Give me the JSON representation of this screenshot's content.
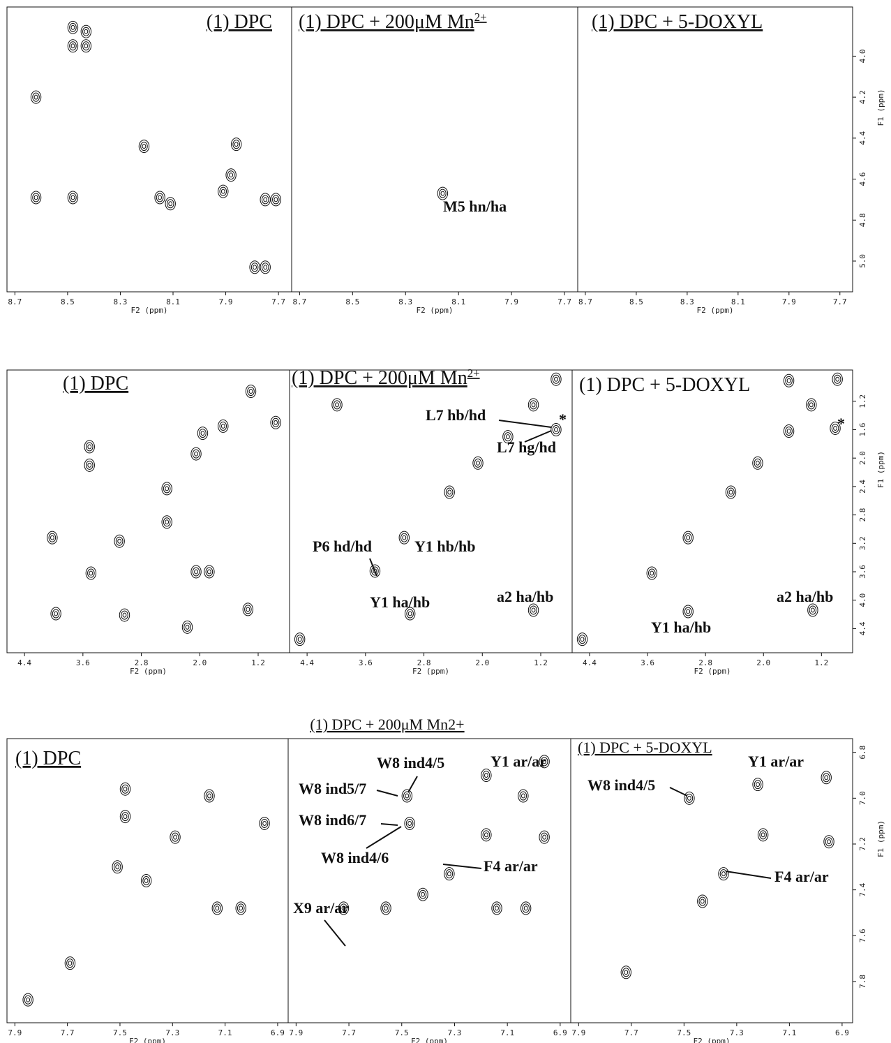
{
  "chart_data": [
    {
      "type": "contour",
      "title": "(1) DPC",
      "xlabel": "F2 (ppm)",
      "xlim": [
        8.73,
        7.65
      ],
      "ylim": [
        3.76,
        5.15
      ],
      "xticks": [
        8.7,
        8.5,
        8.3,
        8.1,
        7.9,
        7.7
      ],
      "x": [
        8.48,
        8.48,
        8.43,
        8.43,
        8.62,
        8.62,
        8.48,
        8.21,
        8.15,
        8.11,
        7.86,
        7.88,
        7.91,
        7.75,
        7.71,
        7.79,
        7.75
      ],
      "y": [
        3.86,
        3.95,
        3.88,
        3.95,
        4.2,
        4.69,
        4.69,
        4.44,
        4.69,
        4.72,
        4.43,
        4.58,
        4.66,
        4.7,
        4.7,
        5.03,
        5.03
      ]
    },
    {
      "type": "contour",
      "title": "(1) DPC + 200μM Mn",
      "title_sup": "2+",
      "xlabel": "F2 (ppm)",
      "xlim": [
        8.73,
        7.65
      ],
      "ylim": [
        3.76,
        5.15
      ],
      "xticks": [
        8.7,
        8.5,
        8.3,
        8.1,
        7.9,
        7.7
      ],
      "x": [
        8.16
      ],
      "y": [
        4.67
      ],
      "annotations": [
        "M5 hn/ha"
      ]
    },
    {
      "type": "contour",
      "title": "(1) DPC + 5-DOXYL",
      "xlabel": "F2 (ppm)",
      "ylabel": "F1 (ppm)",
      "xlim": [
        8.73,
        7.65
      ],
      "ylim": [
        3.76,
        5.15
      ],
      "xticks": [
        8.7,
        8.5,
        8.3,
        8.1,
        7.9,
        7.7
      ],
      "yticks": [
        {
          "value": 4,
          "label": "4.0"
        },
        4.2,
        4.4,
        4.6,
        4.8,
        {
          "value": 5,
          "label": "5.0"
        }
      ],
      "x": [],
      "y": []
    },
    {
      "type": "contour",
      "title": "(1) DPC",
      "xlabel": "F2 (ppm)",
      "xlim": [
        4.64,
        0.77
      ],
      "ylim": [
        0.76,
        4.74
      ],
      "xticks": [
        4.4,
        3.6,
        2.8,
        {
          "value": 2,
          "label": "2.0"
        },
        1.2
      ],
      "x": [
        3.97,
        3.49,
        3.1,
        2.45,
        2.05,
        1.68,
        1.3,
        0.96,
        3.51,
        3.51,
        3.03,
        2.17,
        1.34,
        1.96,
        1.87,
        4.02,
        2.45,
        2.05
      ],
      "y": [
        4.19,
        3.62,
        3.17,
        2.43,
        1.94,
        1.55,
        1.06,
        1.5,
        1.84,
        2.1,
        4.21,
        4.38,
        4.13,
        1.65,
        3.6,
        3.12,
        2.9,
        3.6
      ]
    },
    {
      "type": "contour",
      "title": "(1) DPC + 200μM Mn",
      "title_sup": "2+",
      "xlabel": "F2 (ppm)",
      "xlim": [
        4.64,
        0.77
      ],
      "ylim": [
        0.76,
        4.74
      ],
      "xticks": [
        4.4,
        3.6,
        2.8,
        {
          "value": 2,
          "label": "2.0"
        },
        1.2
      ],
      "x": [
        4.5,
        3.47,
        3.07,
        2.45,
        2.06,
        1.65,
        1.3,
        0.99,
        0.99,
        2.99,
        1.3,
        3.99
      ],
      "y": [
        4.55,
        3.59,
        3.12,
        2.48,
        2.07,
        1.7,
        1.25,
        0.89,
        1.6,
        4.19,
        4.14,
        1.25
      ],
      "annotations": [
        "L7 hb/hd",
        "*",
        "L7 hg/hd",
        "P6 hd/hd",
        "Y1 hb/hb",
        "Y1 ha/hb",
        "a2 ha/hb"
      ]
    },
    {
      "type": "contour",
      "title": "(1) DPC + 5-DOXYL",
      "xlabel": "F2 (ppm)",
      "ylabel": "F1 (ppm)",
      "xlim": [
        4.64,
        0.77
      ],
      "ylim": [
        0.76,
        4.74
      ],
      "xticks": [
        4.4,
        3.6,
        2.8,
        {
          "value": 2,
          "label": "2.0"
        },
        1.2
      ],
      "yticks": [
        1.2,
        1.6,
        {
          "value": 2,
          "label": "2.0"
        },
        2.4,
        2.8,
        3.2,
        3.6,
        {
          "value": 4,
          "label": "4.0"
        },
        4.4
      ],
      "x": [
        4.5,
        3.54,
        3.04,
        2.45,
        2.08,
        1.65,
        1.34,
        0.98,
        1.01,
        1.32,
        3.04,
        1.65
      ],
      "y": [
        4.55,
        3.62,
        3.12,
        2.48,
        2.07,
        1.62,
        1.25,
        0.89,
        1.58,
        4.14,
        4.16,
        0.91
      ],
      "annotations": [
        "*",
        "a2 ha/hb",
        "Y1 ha/hb"
      ]
    },
    {
      "type": "contour",
      "title": "(1) DPC",
      "xlabel": "F2 (ppm)",
      "xlim": [
        7.93,
        6.86
      ],
      "ylim": [
        6.74,
        7.98
      ],
      "xticks": [
        7.9,
        7.7,
        7.5,
        7.3,
        7.1,
        6.9
      ],
      "x": [
        7.48,
        7.48,
        7.51,
        7.4,
        7.16,
        6.95,
        7.13,
        7.04,
        7.69,
        7.85,
        7.29
      ],
      "y": [
        6.96,
        7.08,
        7.3,
        7.36,
        6.99,
        7.11,
        7.48,
        7.48,
        7.72,
        7.88,
        7.17
      ]
    },
    {
      "type": "contour",
      "title": "(1) DPC + 200μM Mn2+",
      "xlabel": "F2 (ppm)",
      "xlim": [
        7.93,
        6.86
      ],
      "ylim": [
        6.74,
        7.98
      ],
      "xticks": [
        7.9,
        7.7,
        7.5,
        7.3,
        7.1,
        6.9
      ],
      "x": [
        7.72,
        7.48,
        7.47,
        7.32,
        7.18,
        7.18,
        7.04,
        6.96,
        6.96,
        7.14,
        7.03,
        7.56,
        7.42
      ],
      "y": [
        7.48,
        6.99,
        7.11,
        7.33,
        6.9,
        7.16,
        6.99,
        6.84,
        7.17,
        7.48,
        7.48,
        7.48,
        7.42
      ],
      "annotations": [
        "W8 ind4/5",
        "W8 ind5/7",
        "W8 ind6/7",
        "W8 ind4/6",
        "F4 ar/ar",
        "X9 ar/ar",
        "Y1 ar/ar"
      ]
    },
    {
      "type": "contour",
      "title": "(1) DPC + 5-DOXYL",
      "xlabel": "F2 (ppm)",
      "ylabel": "F1 (ppm)",
      "xlim": [
        7.93,
        6.86
      ],
      "ylim": [
        6.74,
        7.98
      ],
      "xticks": [
        7.9,
        7.7,
        7.5,
        7.3,
        7.1,
        6.9
      ],
      "yticks": [
        6.8,
        {
          "value": 7,
          "label": "7.0"
        },
        7.2,
        7.4,
        7.6,
        7.8
      ],
      "x": [
        7.72,
        7.48,
        7.22,
        6.96,
        7.2,
        6.95,
        7.35,
        7.43
      ],
      "y": [
        7.76,
        7.0,
        6.94,
        6.91,
        7.16,
        7.19,
        7.33,
        7.45
      ],
      "annotations": [
        "Y1 ar/ar",
        "W8 ind4/5",
        "F4 ar/ar"
      ]
    }
  ]
}
